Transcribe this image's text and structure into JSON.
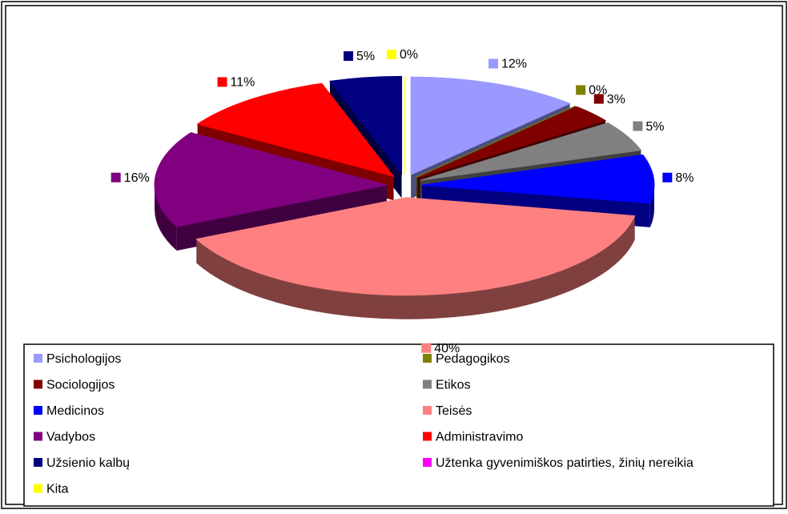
{
  "chart_data": {
    "type": "pie3d",
    "categories": [
      "Psichologijos",
      "Pedagogikos",
      "Sociologijos",
      "Etikos",
      "Medicinos",
      "Teisės",
      "Vadybos",
      "Administravimo",
      "Užsienio kalbų",
      "Užtenka gyvenimiškos patirties, žinių nereikia",
      "Kita"
    ],
    "values": [
      12,
      0,
      3,
      5,
      8,
      40,
      16,
      11,
      5,
      0,
      0
    ],
    "value_labels": [
      "12%",
      "0%",
      "3%",
      "5%",
      "8%",
      "40%",
      "16%",
      "11%",
      "5%",
      null,
      "0%"
    ],
    "colors": [
      "#9999ff",
      "#808000",
      "#800000",
      "#808080",
      "#0000ff",
      "#ff8080",
      "#800080",
      "#ff0000",
      "#000080",
      "#ff00ff",
      "#ffff00"
    ],
    "legend": "bottom"
  }
}
